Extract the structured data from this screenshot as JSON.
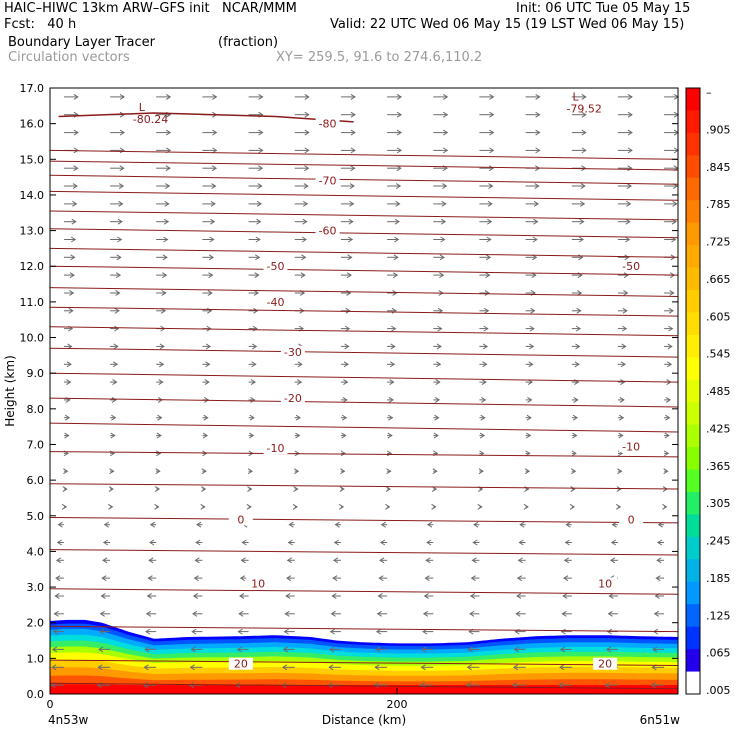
{
  "header": {
    "line1_left": "HAIC–HIWC 13km ARW–GFS init   NCAR/MMM",
    "line1_right": "Init: 06 UTC Tue 05 May 15",
    "line2_left": "Fcst:   40 h",
    "line2_right": "Valid: 22 UTC Wed 06 May 15 (19 LST Wed 06 May 15)",
    "field_name": "Boundary Layer Tracer",
    "field_unit": "(fraction)",
    "vector_label": "Circulation vectors",
    "xy_label": "XY= 259.5, 91.6 to 274.6,110.2"
  },
  "chart_data": {
    "type": "heatmap",
    "ylabel": "Height (km)",
    "xlabel": "Distance (km)",
    "xlim": [
      0,
      362
    ],
    "ylim": [
      0,
      17
    ],
    "yticks": [
      "0.0",
      "1.0",
      "2.0",
      "3.0",
      "4.0",
      "5.0",
      "6.0",
      "7.0",
      "8.0",
      "9.0",
      "10.0",
      "11.0",
      "12.0",
      "13.0",
      "14.0",
      "15.0",
      "16.0",
      "17.0"
    ],
    "xticks": [
      {
        "x": 0,
        "label": "0"
      },
      {
        "x": 200,
        "label": "200"
      }
    ],
    "x_end_labels": {
      "left": "4n53w",
      "right": "6n51w"
    },
    "colorbar_labels": [
      "–",
      ".905",
      ".845",
      ".785",
      ".725",
      ".665",
      ".605",
      ".545",
      ".485",
      ".425",
      ".365",
      ".305",
      ".245",
      ".185",
      ".125",
      ".065",
      ".005"
    ],
    "colorbar_colors": [
      "#ff0000",
      "#ff1a00",
      "#ff3300",
      "#ff4d00",
      "#ff6a00",
      "#ff8000",
      "#ff9900",
      "#ffaa00",
      "#ffbb00",
      "#ffcc00",
      "#ffdd00",
      "#ffee00",
      "#ffff00",
      "#e6ff00",
      "#ccff00",
      "#aaff00",
      "#88ff00",
      "#55ff22",
      "#22ee66",
      "#00dd99",
      "#00cccc",
      "#00b2e6",
      "#0099ff",
      "#0066ff",
      "#0033ff",
      "#2200ee",
      "#ffffff"
    ],
    "tracer_top_km": [
      [
        0,
        2.05
      ],
      [
        10,
        2.08
      ],
      [
        20,
        2.08
      ],
      [
        30,
        2.0
      ],
      [
        45,
        1.75
      ],
      [
        60,
        1.55
      ],
      [
        80,
        1.6
      ],
      [
        110,
        1.62
      ],
      [
        130,
        1.65
      ],
      [
        150,
        1.6
      ],
      [
        165,
        1.5
      ],
      [
        180,
        1.45
      ],
      [
        200,
        1.42
      ],
      [
        220,
        1.42
      ],
      [
        240,
        1.45
      ],
      [
        260,
        1.55
      ],
      [
        280,
        1.62
      ],
      [
        300,
        1.65
      ],
      [
        320,
        1.65
      ],
      [
        340,
        1.62
      ],
      [
        362,
        1.6
      ]
    ],
    "contour_color": "#8b1a1a",
    "temperature_labels_c": [
      {
        "x": 160,
        "z": 16.0,
        "text": "-80"
      },
      {
        "x": 160,
        "z": 14.4,
        "text": "-70"
      },
      {
        "x": 160,
        "z": 13.0,
        "text": "-60"
      },
      {
        "x": 130,
        "z": 12.0,
        "text": "-50"
      },
      {
        "x": 335,
        "z": 12.0,
        "text": "-50"
      },
      {
        "x": 130,
        "z": 11.0,
        "text": "-40"
      },
      {
        "x": 140,
        "z": 9.6,
        "text": "-30"
      },
      {
        "x": 140,
        "z": 8.3,
        "text": "-20"
      },
      {
        "x": 130,
        "z": 6.9,
        "text": "-10"
      },
      {
        "x": 335,
        "z": 6.95,
        "text": "-10"
      },
      {
        "x": 110,
        "z": 4.9,
        "text": "0"
      },
      {
        "x": 335,
        "z": 4.9,
        "text": "0"
      },
      {
        "x": 120,
        "z": 3.1,
        "text": "10"
      },
      {
        "x": 320,
        "z": 3.1,
        "text": "10"
      },
      {
        "x": 110,
        "z": 0.85,
        "text": "20"
      },
      {
        "x": 320,
        "z": 0.85,
        "text": "20"
      }
    ],
    "low_markers": [
      {
        "x": 50,
        "z": 16.3,
        "value": "-80.24"
      },
      {
        "x": 300,
        "z": 16.6,
        "value": "-79.52"
      }
    ]
  }
}
